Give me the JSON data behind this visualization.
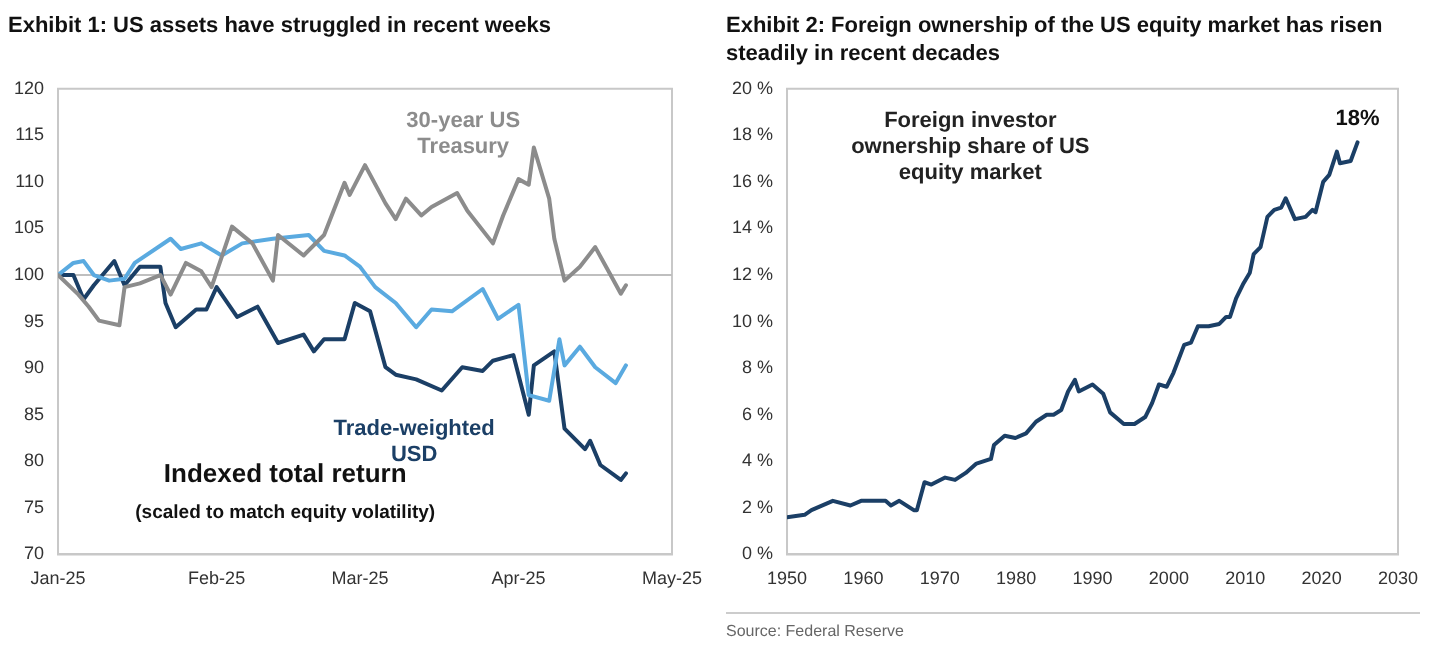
{
  "chart_data": [
    {
      "type": "line",
      "title": "Exhibit 1: US assets have struggled in recent weeks",
      "xlim": [
        "2025-01-01",
        "2025-05-01"
      ],
      "xticks": [
        {
          "value": "2025-01-01",
          "label": "Jan-25"
        },
        {
          "value": "2025-02-01",
          "label": "Feb-25"
        },
        {
          "value": "2025-03-01",
          "label": "Mar-25"
        },
        {
          "value": "2025-04-01",
          "label": "Apr-25"
        },
        {
          "value": "2025-05-01",
          "label": "May-25"
        }
      ],
      "ylim": [
        70,
        120
      ],
      "yticks": [
        70,
        75,
        80,
        85,
        90,
        95,
        100,
        105,
        110,
        115,
        120
      ],
      "grid": false,
      "legend": false,
      "marker": "none",
      "line_style": "solid",
      "ref_lines": [
        {
          "axis": "y",
          "value": 100,
          "color": "#bfbfbf"
        }
      ],
      "annotations": [
        "Indexed total return",
        "(scaled to match equity volatility)"
      ],
      "series": [
        {
          "name": "30-year US Treasury",
          "color": "#8c8c8c",
          "x": [
            "2025-01-01",
            "2025-01-05",
            "2025-01-07",
            "2025-01-09",
            "2025-01-13",
            "2025-01-14",
            "2025-01-17",
            "2025-01-21",
            "2025-01-23",
            "2025-01-26",
            "2025-01-29",
            "2025-01-31",
            "2025-02-04",
            "2025-02-08",
            "2025-02-12",
            "2025-02-13",
            "2025-02-18",
            "2025-02-22",
            "2025-02-26",
            "2025-02-27",
            "2025-03-02",
            "2025-03-06",
            "2025-03-08",
            "2025-03-10",
            "2025-03-13",
            "2025-03-15",
            "2025-03-20",
            "2025-03-22",
            "2025-03-27",
            "2025-03-29",
            "2025-04-01",
            "2025-04-03",
            "2025-04-04",
            "2025-04-07",
            "2025-04-08",
            "2025-04-10",
            "2025-04-13",
            "2025-04-16",
            "2025-04-19",
            "2025-04-21",
            "2025-04-22"
          ],
          "values": [
            100,
            97.9,
            96.6,
            95.1,
            94.6,
            98.7,
            99.1,
            100,
            97.9,
            101.3,
            100.4,
            98.7,
            105.2,
            103.4,
            99.4,
            104.3,
            102.1,
            104.3,
            109.9,
            108.6,
            111.8,
            107.7,
            106,
            108.2,
            106.4,
            107.3,
            108.8,
            106.9,
            103.4,
            106.4,
            110.3,
            109.7,
            113.7,
            108.2,
            103.9,
            99.4,
            100.9,
            103,
            100,
            98,
            98.9
          ]
        },
        {
          "color": "#5aaae0",
          "x": [
            "2025-01-01",
            "2025-01-04",
            "2025-01-06",
            "2025-01-08",
            "2025-01-11",
            "2025-01-14",
            "2025-01-16",
            "2025-01-23",
            "2025-01-25",
            "2025-01-29",
            "2025-02-02",
            "2025-02-06",
            "2025-02-12",
            "2025-02-19",
            "2025-02-22",
            "2025-02-26",
            "2025-03-01",
            "2025-03-04",
            "2025-03-08",
            "2025-03-12",
            "2025-03-15",
            "2025-03-19",
            "2025-03-25",
            "2025-03-28",
            "2025-04-01",
            "2025-04-03",
            "2025-04-07",
            "2025-04-09",
            "2025-04-10",
            "2025-04-13",
            "2025-04-16",
            "2025-04-20",
            "2025-04-22"
          ],
          "values": [
            100,
            101.3,
            101.5,
            100,
            99.4,
            99.6,
            101.3,
            103.9,
            102.8,
            103.4,
            102.1,
            103.4,
            103.9,
            104.3,
            102.6,
            102.1,
            100.9,
            98.7,
            97,
            94.4,
            96.3,
            96.1,
            98.5,
            95.3,
            96.8,
            87.1,
            86.5,
            93.1,
            90.3,
            92.3,
            90.1,
            88.4,
            90.3
          ]
        },
        {
          "name": "Trade-weighted USD",
          "color": "#1b3f66",
          "x": [
            "2025-01-01",
            "2025-01-04",
            "2025-01-06",
            "2025-01-08",
            "2025-01-12",
            "2025-01-14",
            "2025-01-17",
            "2025-01-21",
            "2025-01-22",
            "2025-01-24",
            "2025-01-28",
            "2025-01-30",
            "2025-02-01",
            "2025-02-05",
            "2025-02-09",
            "2025-02-13",
            "2025-02-18",
            "2025-02-20",
            "2025-02-22",
            "2025-02-26",
            "2025-02-28",
            "2025-03-03",
            "2025-03-06",
            "2025-03-08",
            "2025-03-12",
            "2025-03-17",
            "2025-03-21",
            "2025-03-25",
            "2025-03-27",
            "2025-03-31",
            "2025-04-03",
            "2025-04-04",
            "2025-04-08",
            "2025-04-10",
            "2025-04-14",
            "2025-04-15",
            "2025-04-17",
            "2025-04-21",
            "2025-04-22"
          ],
          "values": [
            100,
            100,
            97.4,
            98.9,
            101.5,
            98.9,
            100.9,
            100.9,
            97,
            94.4,
            96.3,
            96.3,
            98.7,
            95.5,
            96.6,
            92.7,
            93.6,
            91.8,
            93.1,
            93.1,
            97,
            96.1,
            90.1,
            89.3,
            88.8,
            87.6,
            90.1,
            89.7,
            90.8,
            91.4,
            85,
            90.3,
            91.8,
            83.5,
            81.3,
            82.2,
            79.6,
            78,
            78.7
          ]
        }
      ]
    },
    {
      "type": "line",
      "title": "Exhibit 2: Foreign ownership of the US equity market has risen steadily in recent decades",
      "xlim": [
        1950,
        2030
      ],
      "xticks": [
        1950,
        1960,
        1970,
        1980,
        1990,
        2000,
        2010,
        2020,
        2030
      ],
      "ylim": [
        0,
        20
      ],
      "yticks": [
        {
          "value": 0,
          "label": "0 %"
        },
        {
          "value": 2,
          "label": "2 %"
        },
        {
          "value": 4,
          "label": "4 %"
        },
        {
          "value": 6,
          "label": "6 %"
        },
        {
          "value": 8,
          "label": "8 %"
        },
        {
          "value": 10,
          "label": "10 %"
        },
        {
          "value": 12,
          "label": "12 %"
        },
        {
          "value": 14,
          "label": "14 %"
        },
        {
          "value": 16,
          "label": "16 %"
        },
        {
          "value": 18,
          "label": "18 %"
        },
        {
          "value": 20,
          "label": "20 %"
        }
      ],
      "grid": false,
      "legend": false,
      "marker": "none",
      "line_style": "solid",
      "annotations": [
        {
          "text": "18%",
          "x": 2024.7,
          "y": 17.7
        },
        "Source: Federal Reserve"
      ],
      "series": [
        {
          "name": "Foreign investor ownership share of US equity market",
          "color": "#1b3f66",
          "x": [
            1950,
            1952.3,
            1953.2,
            1956,
            1958.3,
            1959.7,
            1962.9,
            1963.6,
            1964.7,
            1966.6,
            1967,
            1968,
            1968.9,
            1970.7,
            1972,
            1973.4,
            1974.8,
            1976.7,
            1977.1,
            1978.5,
            1979.9,
            1981.3,
            1982.6,
            1984,
            1984.9,
            1985.9,
            1986.8,
            1987.7,
            1988.2,
            1990,
            1991.4,
            1992.3,
            1994.1,
            1995.5,
            1996.9,
            1997.8,
            1998.7,
            1999.7,
            2000.6,
            2002,
            2002.9,
            2003.8,
            2005.2,
            2006.6,
            2007.5,
            2008,
            2008.8,
            2009.7,
            2010.6,
            2011.1,
            2012,
            2012.9,
            2013.8,
            2014.7,
            2015.3,
            2016.5,
            2017.9,
            2018.8,
            2019.2,
            2020.2,
            2021,
            2022,
            2022.4,
            2023.8,
            2024.7
          ],
          "values": [
            1.6,
            1.7,
            1.9,
            2.3,
            2.1,
            2.3,
            2.3,
            2.1,
            2.3,
            1.9,
            1.9,
            3.1,
            3,
            3.3,
            3.2,
            3.5,
            3.9,
            4.1,
            4.7,
            5.1,
            5,
            5.2,
            5.7,
            6,
            6,
            6.2,
            7,
            7.5,
            7,
            7.3,
            6.9,
            6.1,
            5.6,
            5.6,
            5.9,
            6.5,
            7.3,
            7.2,
            7.8,
            9,
            9.1,
            9.8,
            9.8,
            9.9,
            10.2,
            10.2,
            11,
            11.6,
            12.1,
            12.9,
            13.2,
            14.5,
            14.8,
            14.9,
            15.3,
            14.4,
            14.5,
            14.8,
            14.7,
            16,
            16.3,
            17.3,
            16.8,
            16.9,
            17.7
          ]
        }
      ]
    }
  ]
}
